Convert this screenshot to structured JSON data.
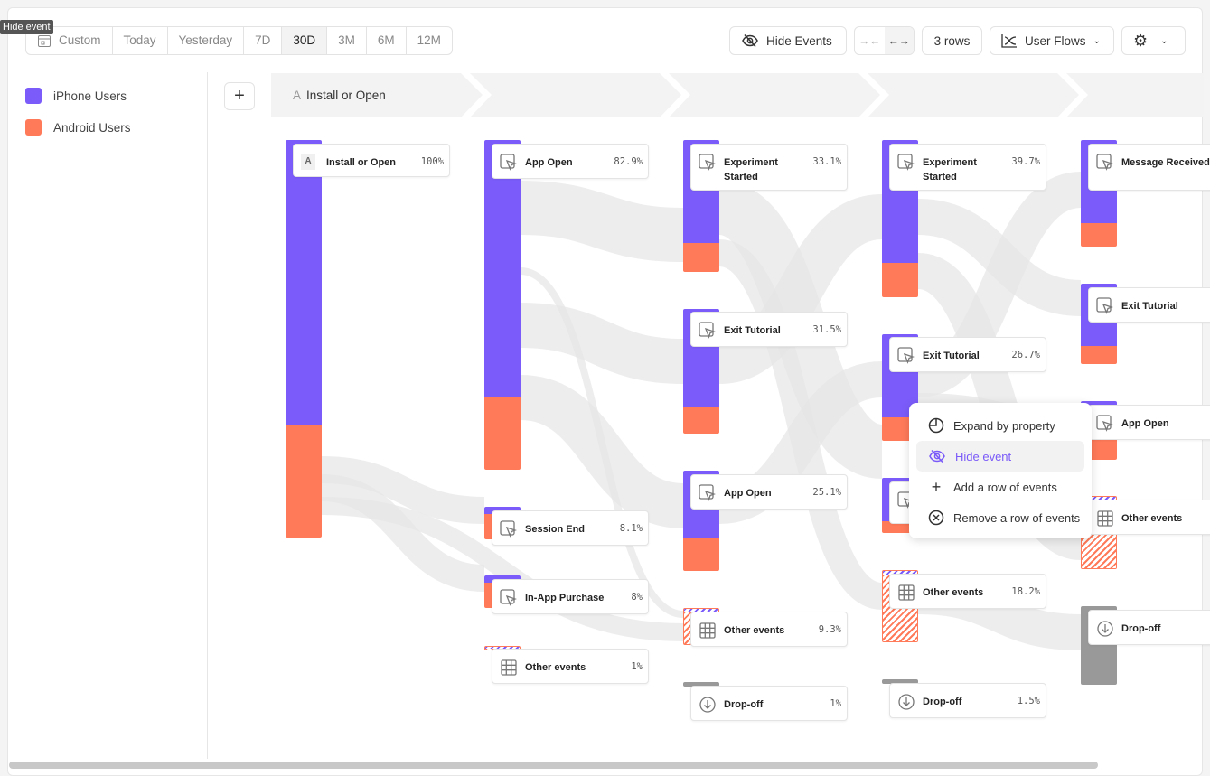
{
  "tooltip": "Hide event",
  "date_range": {
    "custom": "Custom",
    "options": [
      "Today",
      "Yesterday",
      "7D",
      "30D",
      "3M",
      "6M",
      "12M"
    ],
    "selected": "30D"
  },
  "toolbar": {
    "hide_events": "Hide Events",
    "rows": "3 rows",
    "view": "User Flows"
  },
  "legend": [
    {
      "label": "iPhone Users",
      "color": "#7b5cfa"
    },
    {
      "label": "Android Users",
      "color": "#ff7a59"
    }
  ],
  "step": {
    "letter": "A",
    "name": "Install or Open"
  },
  "colors": {
    "iphone": "#7b5cfa",
    "android": "#ff7a59",
    "dropoff": "#999999",
    "accent": "#7a5af8"
  },
  "columns": [
    [
      {
        "label": "Install or Open",
        "pct": "100%",
        "icon": "letter-a"
      }
    ],
    [
      {
        "label": "App Open",
        "pct": "82.9%",
        "icon": "cursor"
      },
      {
        "label": "Session End",
        "pct": "8.1%",
        "icon": "cursor"
      },
      {
        "label": "In-App Purchase",
        "pct": "8%",
        "icon": "cursor"
      },
      {
        "label": "Other events",
        "pct": "1%",
        "icon": "grid"
      }
    ],
    [
      {
        "label": "Experiment Started",
        "pct": "33.1%",
        "icon": "cursor"
      },
      {
        "label": "Exit Tutorial",
        "pct": "31.5%",
        "icon": "cursor"
      },
      {
        "label": "App Open",
        "pct": "25.1%",
        "icon": "cursor"
      },
      {
        "label": "Other events",
        "pct": "9.3%",
        "icon": "grid"
      },
      {
        "label": "Drop-off",
        "pct": "1%",
        "icon": "dropoff"
      }
    ],
    [
      {
        "label": "Experiment Started",
        "pct": "39.7%",
        "icon": "cursor"
      },
      {
        "label": "Exit Tutorial",
        "pct": "26.7%",
        "icon": "cursor"
      },
      {
        "label": "",
        "pct": "",
        "icon": "cursor"
      },
      {
        "label": "Other events",
        "pct": "18.2%",
        "icon": "grid"
      },
      {
        "label": "Drop-off",
        "pct": "1.5%",
        "icon": "dropoff"
      }
    ],
    [
      {
        "label": "Message Received",
        "pct": "",
        "icon": "cursor"
      },
      {
        "label": "Exit Tutorial",
        "pct": "",
        "icon": "cursor"
      },
      {
        "label": "App Open",
        "pct": "",
        "icon": "cursor"
      },
      {
        "label": "Other events",
        "pct": "",
        "icon": "grid"
      },
      {
        "label": "Drop-off",
        "pct": "",
        "icon": "dropoff"
      }
    ]
  ],
  "context_menu": [
    {
      "label": "Expand by property",
      "icon": "expand-icon"
    },
    {
      "label": "Hide event",
      "icon": "eye-off-icon",
      "highlighted": true
    },
    {
      "label": "Add a row of events",
      "icon": "plus-icon"
    },
    {
      "label": "Remove a row of events",
      "icon": "remove-circle-icon"
    }
  ]
}
